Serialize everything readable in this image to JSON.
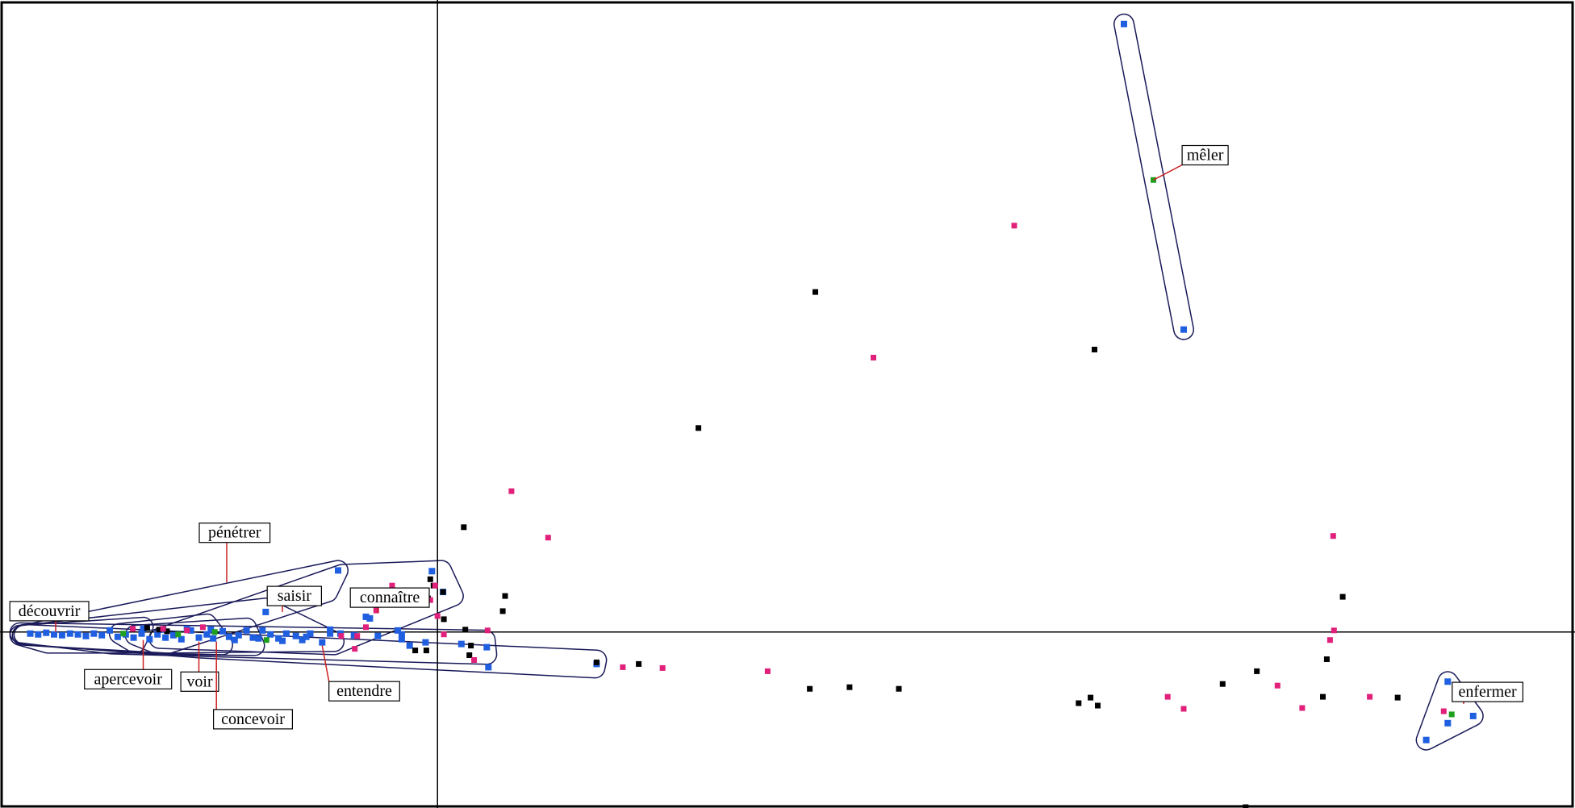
{
  "chart_data": {
    "type": "scatter",
    "title": "",
    "xlabel": "",
    "ylabel": "",
    "xlim": [
      -0.55,
      1.43
    ],
    "ylim": [
      -0.22,
      0.79
    ],
    "axes_origin": [
      0,
      0
    ],
    "grid": false,
    "legend": "none",
    "colors": {
      "blue": "#1f5fe0",
      "black": "#000000",
      "pink": "#e0207a",
      "green": "#20a020",
      "hull": "#1a1a5a",
      "leader": "#cc2020",
      "label_border": "#000000"
    },
    "series": [
      {
        "color": "blue",
        "points": [
          [
            0.863,
            0.76
          ],
          [
            0.938,
            0.378
          ],
          [
            1.27,
            -0.062
          ],
          [
            1.302,
            -0.105
          ],
          [
            1.27,
            -0.114
          ],
          [
            1.243,
            -0.135
          ],
          [
            -0.125,
            0.077
          ],
          [
            -0.007,
            0.076
          ],
          [
            -0.216,
            0.025
          ],
          [
            -0.09,
            0.019
          ],
          [
            -0.085,
            0.017
          ],
          [
            0.007,
            0.05
          ],
          [
            0.062,
            -0.019
          ],
          [
            0.064,
            -0.044
          ],
          [
            -0.035,
            -0.017
          ],
          [
            -0.045,
            -0.003
          ],
          [
            -0.05,
            0.002
          ],
          [
            -0.122,
            -0.002
          ],
          [
            -0.135,
            -0.002
          ],
          [
            -0.145,
            -0.013
          ],
          [
            -0.16,
            -0.002
          ],
          [
            -0.17,
            -0.01
          ],
          [
            -0.178,
            -0.005
          ],
          [
            -0.19,
            -0.002
          ],
          [
            -0.2,
            -0.008
          ],
          [
            -0.21,
            -0.003
          ],
          [
            -0.22,
            0.002
          ],
          [
            -0.232,
            -0.007
          ],
          [
            -0.24,
            0.002
          ],
          [
            -0.25,
            -0.004
          ],
          [
            -0.262,
            -0.006
          ],
          [
            -0.27,
            0.001
          ],
          [
            -0.282,
            -0.008
          ],
          [
            -0.29,
            -0.003
          ],
          [
            -0.3,
            -0.007
          ],
          [
            -0.31,
            0.002
          ],
          [
            -0.322,
            -0.009
          ],
          [
            -0.332,
            -0.004
          ],
          [
            -0.342,
            -0.007
          ],
          [
            -0.352,
            -0.003
          ],
          [
            -0.362,
            -0.009
          ],
          [
            -0.372,
            -0.002
          ],
          [
            -0.382,
            -0.007
          ],
          [
            -0.392,
            -0.003
          ],
          [
            -0.402,
            -0.006
          ],
          [
            -0.412,
            0.002
          ],
          [
            -0.422,
            -0.004
          ],
          [
            -0.432,
            -0.002
          ],
          [
            -0.442,
            -0.005
          ],
          [
            -0.452,
            -0.003
          ],
          [
            -0.462,
            -0.002
          ],
          [
            -0.472,
            -0.004
          ],
          [
            -0.482,
            -0.003
          ],
          [
            -0.492,
            -0.001
          ],
          [
            -0.502,
            -0.003
          ],
          [
            -0.512,
            -0.002
          ],
          [
            -0.37,
            0.004
          ],
          [
            -0.345,
            0.003
          ],
          [
            -0.315,
            0.004
          ],
          [
            -0.285,
            0.003
          ],
          [
            -0.255,
            -0.01
          ],
          [
            -0.225,
            -0.008
          ],
          [
            -0.195,
            -0.011
          ],
          [
            -0.165,
            -0.006
          ],
          [
            -0.135,
            0.003
          ],
          [
            -0.105,
            -0.004
          ],
          [
            -0.075,
            -0.005
          ],
          [
            -0.045,
            -0.009
          ],
          [
            -0.015,
            -0.013
          ],
          [
            0.03,
            -0.015
          ],
          [
            0.2,
            -0.04
          ]
        ]
      },
      {
        "color": "black",
        "points": [
          [
            0.475,
            0.425
          ],
          [
            0.826,
            0.353
          ],
          [
            0.328,
            0.255
          ],
          [
            0.033,
            0.131
          ],
          [
            0.085,
            0.045
          ],
          [
            0.082,
            0.026
          ],
          [
            -0.009,
            0.066
          ],
          [
            -0.005,
            0.058
          ],
          [
            -0.012,
            0.042
          ],
          [
            0.007,
            0.05
          ],
          [
            0.008,
            0.016
          ],
          [
            0.035,
            0.003
          ],
          [
            -0.014,
            -0.023
          ],
          [
            -0.028,
            -0.023
          ],
          [
            0.042,
            -0.017
          ],
          [
            0.04,
            -0.029
          ],
          [
            0.2,
            -0.038
          ],
          [
            0.253,
            -0.04
          ],
          [
            0.468,
            -0.071
          ],
          [
            0.518,
            -0.069
          ],
          [
            0.58,
            -0.071
          ],
          [
            0.806,
            -0.089
          ],
          [
            0.821,
            -0.082
          ],
          [
            0.83,
            -0.092
          ],
          [
            0.987,
            -0.065
          ],
          [
            1.03,
            -0.049
          ],
          [
            1.118,
            -0.034
          ],
          [
            1.138,
            0.044
          ],
          [
            1.113,
            -0.081
          ],
          [
            1.207,
            -0.082
          ],
          [
            1.016,
            -0.219
          ],
          [
            -0.365,
            0.005
          ],
          [
            -0.35,
            0.003
          ],
          [
            -0.34,
            0.001
          ]
        ]
      },
      {
        "color": "pink",
        "points": [
          [
            0.725,
            0.508
          ],
          [
            0.548,
            0.343
          ],
          [
            0.093,
            0.176
          ],
          [
            0.139,
            0.118
          ],
          [
            1.126,
            0.12
          ],
          [
            1.127,
            0.002
          ],
          [
            1.122,
            -0.01
          ],
          [
            0.233,
            -0.044
          ],
          [
            0.283,
            -0.045
          ],
          [
            0.415,
            -0.049
          ],
          [
            -0.057,
            0.058
          ],
          [
            -0.077,
            0.027
          ],
          [
            -0.003,
            0.058
          ],
          [
            -0.009,
            0.04
          ],
          [
            0.063,
            0.002
          ],
          [
            0.008,
            -0.003
          ],
          [
            0.046,
            -0.035
          ],
          [
            -0.101,
            -0.005
          ],
          [
            -0.104,
            -0.021
          ],
          [
            -0.121,
            -0.005
          ],
          [
            -0.295,
            0.006
          ],
          [
            -0.315,
            0.002
          ],
          [
            -0.345,
            0.004
          ],
          [
            -0.383,
            0.004
          ],
          [
            0.918,
            -0.081
          ],
          [
            0.938,
            -0.096
          ],
          [
            1.056,
            -0.067
          ],
          [
            1.087,
            -0.095
          ],
          [
            1.172,
            -0.081
          ],
          [
            1.265,
            -0.099
          ],
          [
            0.0,
            0.02
          ],
          [
            -0.09,
            0.006
          ]
        ]
      },
      {
        "color": "green",
        "points": [
          [
            0.9,
            0.565
          ],
          [
            1.275,
            -0.103
          ],
          [
            -0.326,
            -0.003
          ],
          [
            -0.215,
            -0.01
          ],
          [
            -0.395,
            -0.002
          ],
          [
            -0.28,
            0.0
          ]
        ]
      }
    ],
    "hulls": [
      {
        "name": "mêler",
        "points": [
          [
            0.863,
            0.76
          ],
          [
            0.938,
            0.378
          ]
        ]
      },
      {
        "name": "enfermer",
        "points": [
          [
            1.27,
            -0.062
          ],
          [
            1.302,
            -0.105
          ],
          [
            1.243,
            -0.135
          ]
        ]
      },
      {
        "name": "pénétrer",
        "points": [
          [
            -0.522,
            -0.004
          ],
          [
            -0.125,
            0.077
          ],
          [
            -0.138,
            0.05
          ],
          [
            -0.34,
            -0.015
          ]
        ]
      },
      {
        "name": "saisir",
        "points": [
          [
            -0.52,
            -0.004
          ],
          [
            -0.216,
            0.03
          ],
          [
            -0.13,
            -0.012
          ],
          [
            -0.34,
            -0.014
          ]
        ]
      },
      {
        "name": "connaître",
        "points": [
          [
            -0.35,
            -0.008
          ],
          [
            -0.12,
            0.072
          ],
          [
            0.005,
            0.077
          ],
          [
            0.02,
            0.045
          ],
          [
            -0.13,
            -0.016
          ]
        ]
      },
      {
        "name": "découvrir",
        "points": [
          [
            -0.525,
            -0.001
          ],
          [
            0.06,
            -0.01
          ],
          [
            0.062,
            -0.028
          ],
          [
            -0.41,
            -0.015
          ]
        ]
      },
      {
        "name": "entendre",
        "points": [
          [
            -0.52,
            -0.003
          ],
          [
            0.2,
            -0.035
          ],
          [
            0.198,
            -0.045
          ],
          [
            -0.3,
            -0.02
          ]
        ]
      },
      {
        "name": "apercevoir",
        "points": [
          [
            -0.525,
            -0.004
          ],
          [
            -0.37,
            0.006
          ],
          [
            -0.38,
            -0.014
          ],
          [
            -0.49,
            -0.014
          ]
        ]
      },
      {
        "name": "voir",
        "points": [
          [
            -0.4,
            -0.002
          ],
          [
            -0.29,
            0.01
          ],
          [
            -0.27,
            -0.016
          ],
          [
            -0.38,
            -0.014
          ]
        ]
      },
      {
        "name": "concevoir",
        "points": [
          [
            -0.38,
            -0.004
          ],
          [
            -0.24,
            0.005
          ],
          [
            -0.23,
            -0.017
          ],
          [
            -0.35,
            -0.016
          ]
        ]
      }
    ],
    "annotations": [
      {
        "text": "mêler",
        "label_at": [
          0.965,
          0.596
        ],
        "anchor": [
          0.9,
          0.565
        ]
      },
      {
        "text": "enfermer",
        "label_at": [
          1.32,
          -0.075
        ],
        "anchor": [
          1.29,
          -0.09
        ]
      },
      {
        "text": "pénétrer",
        "label_at": [
          -0.255,
          0.124
        ],
        "anchor": [
          -0.265,
          0.062
        ]
      },
      {
        "text": "saisir",
        "label_at": [
          -0.18,
          0.045
        ],
        "anchor": [
          -0.195,
          0.025
        ]
      },
      {
        "text": "connaître",
        "label_at": [
          -0.06,
          0.043
        ],
        "anchor": [
          -0.075,
          0.024
        ]
      },
      {
        "text": "découvrir",
        "label_at": [
          -0.488,
          0.026
        ],
        "anchor": [
          -0.48,
          0.0
        ]
      },
      {
        "text": "apercevoir",
        "label_at": [
          -0.389,
          -0.059
        ],
        "anchor": [
          -0.37,
          -0.01
        ]
      },
      {
        "text": "voir",
        "label_at": [
          -0.299,
          -0.062
        ],
        "anchor": [
          -0.3,
          -0.012
        ]
      },
      {
        "text": "concevoir",
        "label_at": [
          -0.232,
          -0.109
        ],
        "anchor": [
          -0.278,
          -0.012
        ]
      },
      {
        "text": "entendre",
        "label_at": [
          -0.092,
          -0.074
        ],
        "anchor": [
          -0.145,
          -0.017
        ]
      }
    ]
  }
}
